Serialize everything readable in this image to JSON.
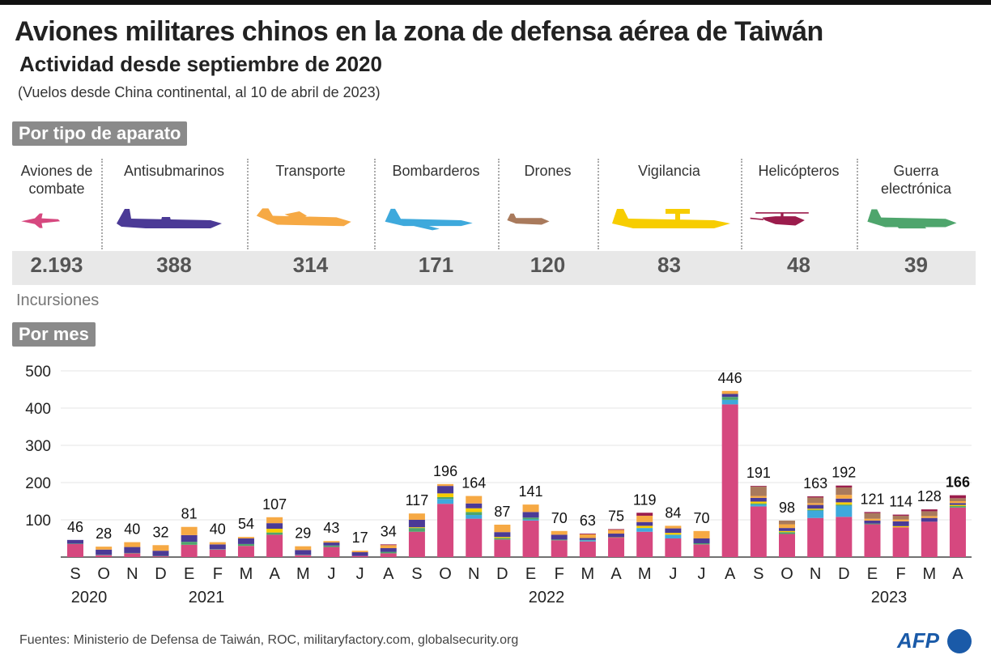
{
  "title": "Aviones militares chinos en la zona de defensa aérea de Taiwán",
  "subtitle": "Actividad desde septiembre de 2020",
  "note": "(Vuelos desde China continental, al 10 de abril de 2023)",
  "section_type": "Por tipo de aparato",
  "section_month": "Por mes",
  "incursions_label": "Incursiones",
  "types": [
    {
      "label": "Aviones de combate",
      "total": "2.193",
      "color": "#d6487f",
      "icon": "fighter-jet-icon"
    },
    {
      "label": "Antisubmarinos",
      "total": "388",
      "color": "#4b3a96",
      "icon": "antisubmarine-plane-icon"
    },
    {
      "label": "Transporte",
      "total": "314",
      "color": "#f6a944",
      "icon": "transport-plane-icon"
    },
    {
      "label": "Bombarderos",
      "total": "171",
      "color": "#3ea9dc",
      "icon": "bomber-icon"
    },
    {
      "label": "Drones",
      "total": "120",
      "color": "#a97a5c",
      "icon": "drone-icon"
    },
    {
      "label": "Vigilancia",
      "total": "83",
      "color": "#f7cd00",
      "icon": "surveillance-plane-icon"
    },
    {
      "label": "Helicópteros",
      "total": "48",
      "color": "#9b1c4c",
      "icon": "helicopter-icon"
    },
    {
      "label": "Guerra electrónica",
      "total": "39",
      "color": "#4ea56c",
      "icon": "electronic-warfare-plane-icon"
    }
  ],
  "source": "Fuentes: Ministerio de Defensa de Taiwán, ROC, militaryfactory.com, globalsecurity.org",
  "logo": "AFP",
  "chart_data": {
    "type": "bar",
    "stacked": true,
    "ylim": [
      0,
      500
    ],
    "yticks": [
      100,
      200,
      300,
      400,
      500
    ],
    "grid": true,
    "categories": [
      "S",
      "O",
      "N",
      "D",
      "E",
      "F",
      "M",
      "A",
      "M",
      "J",
      "J",
      "A",
      "S",
      "O",
      "N",
      "D",
      "E",
      "F",
      "M",
      "A",
      "M",
      "J",
      "J",
      "A",
      "S",
      "O",
      "N",
      "D",
      "E",
      "F",
      "M",
      "A"
    ],
    "years": [
      {
        "label": "2020",
        "at": 0
      },
      {
        "label": "2021",
        "at": 4
      },
      {
        "label": "2022",
        "at": 16
      },
      {
        "label": "2023",
        "at": 28
      }
    ],
    "totals": [
      46,
      28,
      40,
      32,
      81,
      40,
      54,
      107,
      29,
      43,
      17,
      34,
      117,
      196,
      164,
      87,
      141,
      70,
      63,
      75,
      119,
      84,
      70,
      446,
      191,
      98,
      163,
      192,
      121,
      114,
      128,
      166
    ],
    "series_order": [
      "Aviones de combate",
      "Bombarderos",
      "Guerra electrónica",
      "Vigilancia",
      "Antisubmarinos",
      "Transporte",
      "Drones",
      "Helicópteros"
    ],
    "series": [
      {
        "name": "Aviones de combate",
        "values": [
          35,
          5,
          10,
          2,
          33,
          20,
          30,
          60,
          5,
          27,
          3,
          10,
          68,
          143,
          103,
          47,
          98,
          45,
          42,
          52,
          68,
          50,
          34,
          410,
          136,
          62,
          105,
          108,
          88,
          80,
          95,
          133
        ]
      },
      {
        "name": "Bombarderos",
        "values": [
          0,
          0,
          0,
          0,
          0,
          0,
          0,
          0,
          0,
          0,
          0,
          0,
          0,
          13,
          10,
          0,
          3,
          0,
          3,
          0,
          10,
          10,
          0,
          12,
          5,
          0,
          20,
          30,
          0,
          0,
          0,
          0
        ]
      },
      {
        "name": "Guerra electrónica",
        "values": [
          1,
          1,
          1,
          1,
          8,
          1,
          5,
          6,
          1,
          4,
          0,
          4,
          10,
          5,
          8,
          4,
          5,
          2,
          1,
          0,
          0,
          0,
          3,
          8,
          3,
          5,
          2,
          3,
          2,
          0,
          0,
          4
        ]
      },
      {
        "name": "Vigilancia",
        "values": [
          0,
          0,
          0,
          0,
          0,
          0,
          0,
          10,
          0,
          0,
          0,
          0,
          2,
          10,
          10,
          3,
          0,
          0,
          0,
          1,
          6,
          5,
          0,
          0,
          5,
          3,
          3,
          6,
          0,
          3,
          0,
          3
        ]
      },
      {
        "name": "Antisubmarinos",
        "values": [
          10,
          14,
          16,
          14,
          18,
          13,
          15,
          15,
          13,
          8,
          10,
          10,
          20,
          20,
          13,
          13,
          15,
          13,
          5,
          10,
          10,
          12,
          13,
          8,
          10,
          8,
          10,
          10,
          8,
          13,
          10,
          5
        ]
      },
      {
        "name": "Transporte",
        "values": [
          0,
          8,
          13,
          15,
          22,
          6,
          4,
          16,
          10,
          4,
          4,
          8,
          17,
          5,
          20,
          20,
          20,
          10,
          10,
          10,
          17,
          7,
          20,
          8,
          5,
          10,
          5,
          10,
          5,
          5,
          5,
          5
        ]
      },
      {
        "name": "Drones",
        "values": [
          0,
          0,
          0,
          0,
          0,
          0,
          0,
          0,
          0,
          0,
          0,
          0,
          0,
          0,
          0,
          0,
          0,
          0,
          0,
          0,
          0,
          0,
          0,
          0,
          25,
          10,
          15,
          20,
          15,
          10,
          13,
          8
        ]
      },
      {
        "name": "Helicópteros",
        "values": [
          0,
          0,
          0,
          0,
          0,
          0,
          0,
          0,
          0,
          0,
          0,
          2,
          0,
          0,
          0,
          0,
          0,
          0,
          2,
          2,
          8,
          0,
          0,
          0,
          2,
          0,
          3,
          5,
          3,
          3,
          5,
          8
        ]
      }
    ]
  }
}
